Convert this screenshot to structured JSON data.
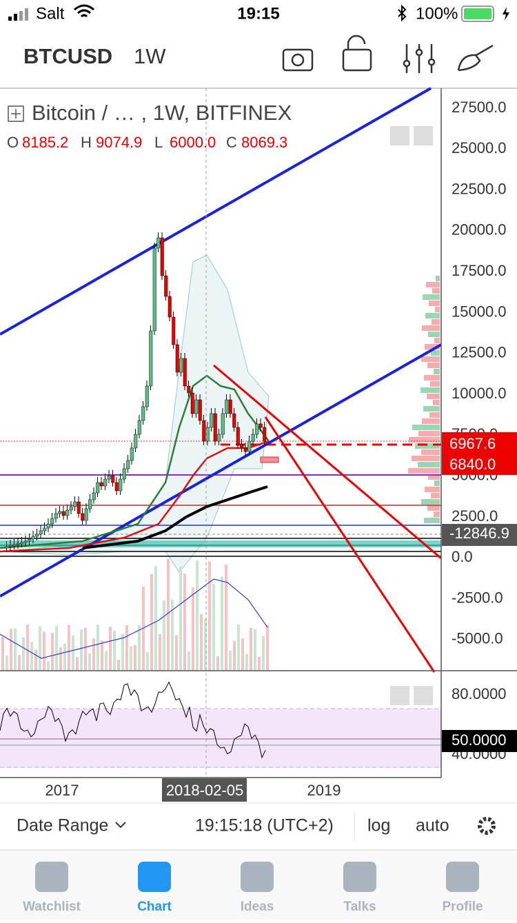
{
  "status_bar": {
    "carrier": "Salt",
    "time": "19:15",
    "battery": "100%"
  },
  "header": {
    "symbol": "BTCUSD",
    "interval": "1W"
  },
  "legend": {
    "title": "Bitcoin / …  , 1W, BITFINEX",
    "ohlc": [
      {
        "key": "O",
        "value": "8185.2"
      },
      {
        "key": "H",
        "value": "9074.9"
      },
      {
        "key": "L",
        "value": "6000.0"
      },
      {
        "key": "C",
        "value": "8069.3"
      }
    ]
  },
  "price_axis": {
    "ticks": [
      "27500.0",
      "25000.0",
      "22500.0",
      "20000.0",
      "17500.0",
      "15000.0",
      "12500.0",
      "10000.0",
      "7500.0",
      "5000.0",
      "2500.0",
      "0.0",
      "-2500.0",
      "-5000.0"
    ],
    "badges": [
      "6967.6",
      "6840.0",
      "-12846.9"
    ]
  },
  "rsi_axis": {
    "ticks": [
      "80.0000",
      "40.0000"
    ],
    "badge": "50.0000"
  },
  "time_axis": {
    "labels": [
      "2017",
      "2019"
    ],
    "crosshair": "2018-02-05"
  },
  "toolbar": {
    "date_range": "Date Range",
    "clock": "19:15:18 (UTC+2)",
    "log": "log",
    "auto": "auto"
  },
  "tabs": [
    "Watchlist",
    "Chart",
    "Ideas",
    "Talks",
    "Profile"
  ]
}
